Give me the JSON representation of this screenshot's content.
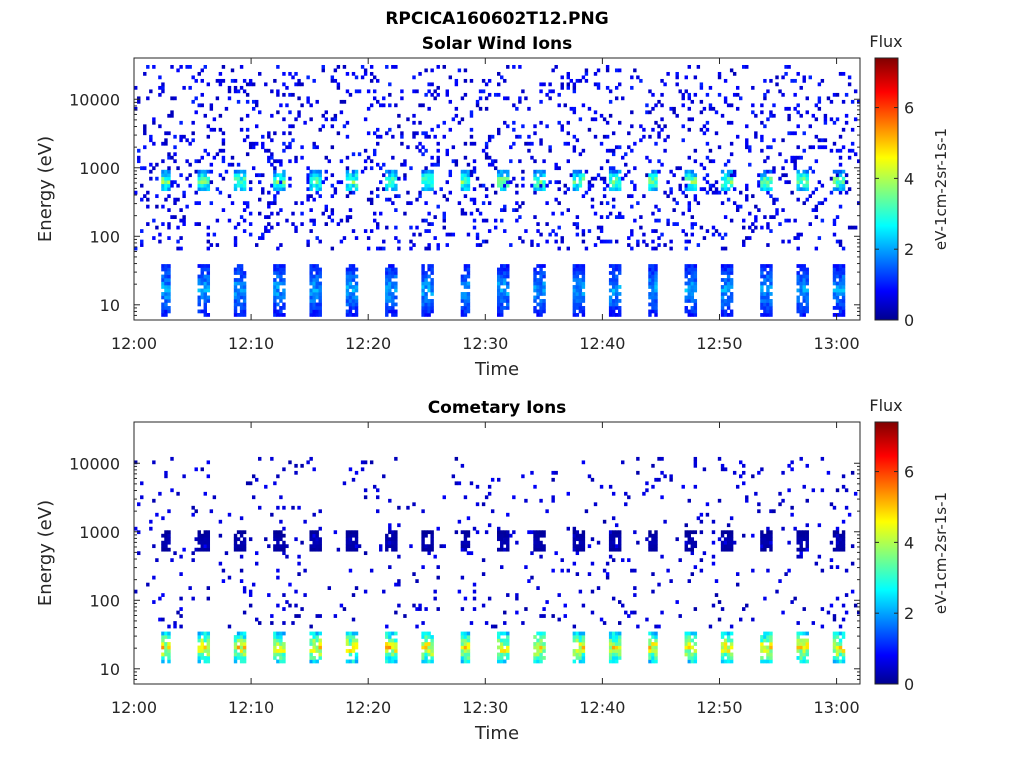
{
  "figure_title": "RPCICA160602T12.PNG",
  "chart_data": [
    {
      "type": "heatmap",
      "title": "Solar Wind Ions",
      "xlabel": "Time",
      "ylabel": "Energy (eV)",
      "x_ticks": [
        "12:00",
        "12:10",
        "12:20",
        "12:30",
        "12:40",
        "12:50",
        "13:00"
      ],
      "x_range_minutes": [
        0,
        62
      ],
      "y_scale": "log",
      "y_ticks": [
        10,
        100,
        1000,
        10000
      ],
      "y_tick_labels": [
        "10",
        "100",
        "1000",
        "10000"
      ],
      "y_range": [
        6,
        40000
      ],
      "colorbar": {
        "label": "Flux",
        "unit": "eV-1cm-2sr-1s-1",
        "ticks": [
          "0",
          "2",
          "4",
          "6"
        ],
        "range": [
          0,
          7.4
        ],
        "colormap": "jet"
      },
      "features": [
        {
          "kind": "periodic-bursts",
          "period_minutes": 3.2,
          "start_minute": 2.4,
          "energy_range": [
            450,
            900
          ],
          "peak_flux": 3.8
        },
        {
          "kind": "scattered-noise",
          "energy_range": [
            60,
            30000
          ],
          "flux": 0.8
        },
        {
          "kind": "low-energy-bursts",
          "period_minutes": 3.2,
          "start_minute": 2.4,
          "energy_range": [
            7,
            40
          ],
          "peak_flux": 2.2
        }
      ]
    },
    {
      "type": "heatmap",
      "title": "Cometary Ions",
      "xlabel": "Time",
      "ylabel": "Energy (eV)",
      "x_ticks": [
        "12:00",
        "12:10",
        "12:20",
        "12:30",
        "12:40",
        "12:50",
        "13:00"
      ],
      "x_range_minutes": [
        0,
        62
      ],
      "y_scale": "log",
      "y_ticks": [
        10,
        100,
        1000,
        10000
      ],
      "y_tick_labels": [
        "10",
        "100",
        "1000",
        "10000"
      ],
      "y_range": [
        6,
        40000
      ],
      "colorbar": {
        "label": "Flux",
        "unit": "eV-1cm-2sr-1s-1",
        "ticks": [
          "0",
          "2",
          "4",
          "6"
        ],
        "range": [
          0,
          7.4
        ],
        "colormap": "jet"
      },
      "features": [
        {
          "kind": "periodic-bursts",
          "period_minutes": 3.2,
          "start_minute": 2.4,
          "energy_range": [
            12,
            35
          ],
          "peak_flux": 4.8
        },
        {
          "kind": "mid-energy-bursts",
          "period_minutes": 3.2,
          "start_minute": 2.4,
          "energy_range": [
            500,
            1000
          ],
          "peak_flux": 0.4
        },
        {
          "kind": "scattered-noise",
          "energy_range": [
            40,
            12000
          ],
          "flux": 0.6
        }
      ]
    }
  ]
}
